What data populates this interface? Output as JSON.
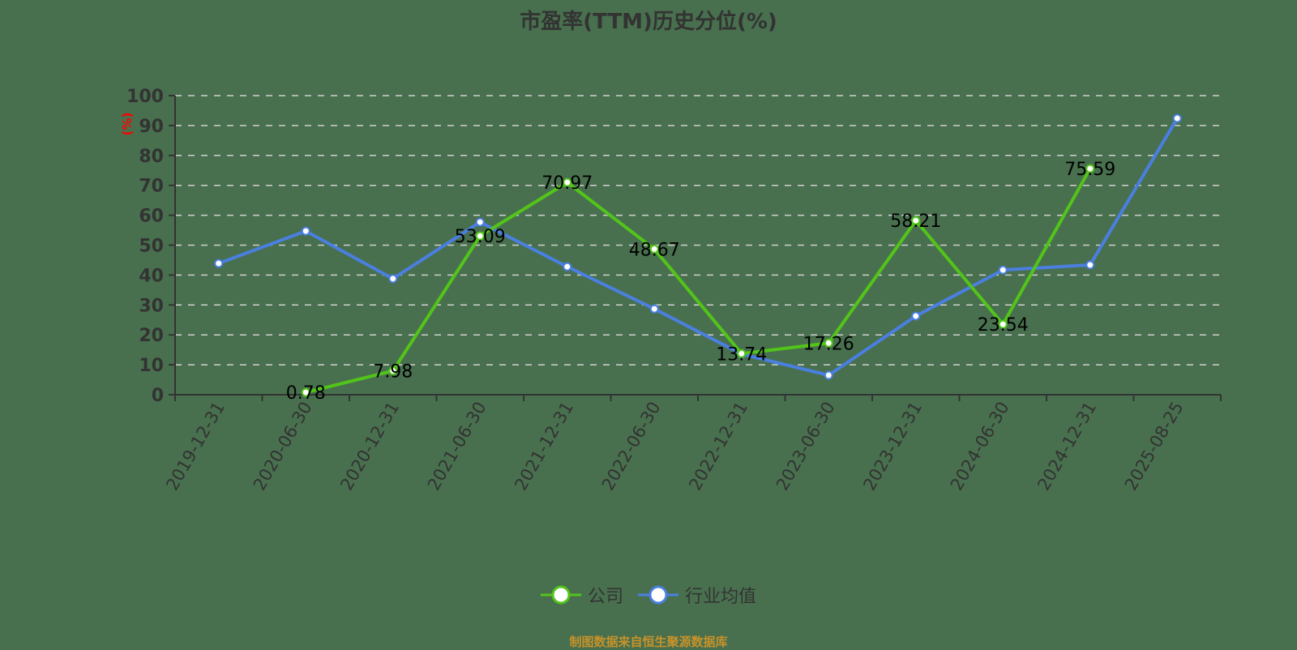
{
  "title": "市盈率(TTM)历史分位(%)",
  "y_unit_label": "(%)",
  "source_note": "制图数据来自恒生聚源数据库",
  "colors": {
    "background": "#48704e",
    "company": "#52c41a",
    "industry": "#4a7fe0",
    "axis": "#333333",
    "grid": "#d0d0d0",
    "unit_label": "#ff0000",
    "source_note": "#c7922a"
  },
  "legend": [
    {
      "label": "公司",
      "color": "#52c41a"
    },
    {
      "label": "行业均值",
      "color": "#4a7fe0"
    }
  ],
  "chart_data": {
    "type": "line",
    "title": "市盈率(TTM)历史分位(%)",
    "xlabel": "",
    "ylabel": "(%)",
    "ylim": [
      0,
      100
    ],
    "yticks": [
      0,
      10,
      20,
      30,
      40,
      50,
      60,
      70,
      80,
      90,
      100
    ],
    "grid": true,
    "legend_position": "bottom",
    "categories": [
      "2019-12-31",
      "2020-06-30",
      "2020-12-31",
      "2021-06-30",
      "2021-12-31",
      "2022-06-30",
      "2022-12-31",
      "2023-06-30",
      "2023-12-31",
      "2024-06-30",
      "2024-12-31",
      "2025-08-25"
    ],
    "series": [
      {
        "name": "公司",
        "values": [
          null,
          0.78,
          7.98,
          53.09,
          70.97,
          48.67,
          13.74,
          17.26,
          58.21,
          23.54,
          75.59,
          null
        ],
        "data_labels": true
      },
      {
        "name": "行业均值",
        "values": [
          43.9,
          54.7,
          38.8,
          57.7,
          42.8,
          28.7,
          13.6,
          6.5,
          26.3,
          41.7,
          43.4,
          92.4
        ],
        "data_labels": false
      }
    ]
  }
}
